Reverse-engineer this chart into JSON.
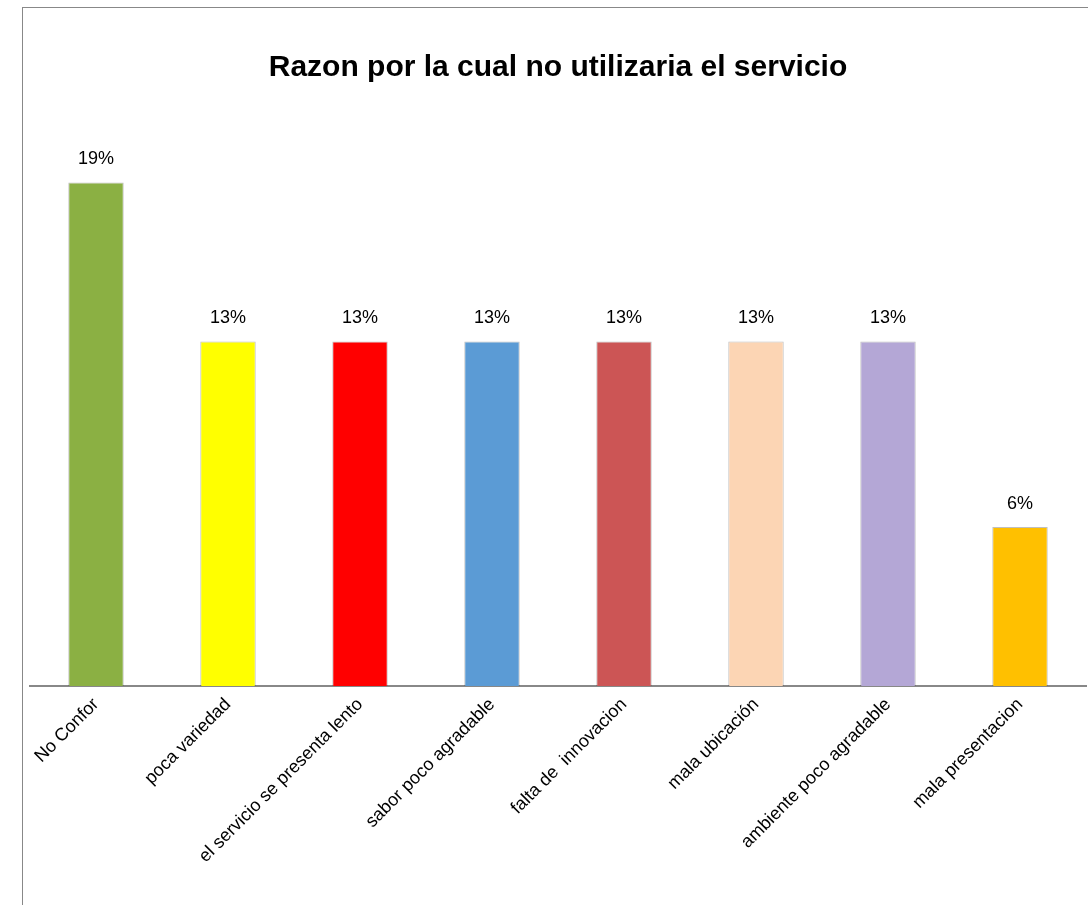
{
  "chart_data": {
    "type": "bar",
    "title": "Razon por la cual no utilizaria el servicio",
    "categories": [
      "No Confor",
      "poca variedad",
      "el servicio se presenta lento",
      "sabor poco agradable",
      "falta de  innovacion",
      "mala ubicación",
      "ambiente poco agradable",
      "mala presentacion"
    ],
    "values": [
      19,
      13,
      13,
      13,
      13,
      13,
      13,
      6
    ],
    "value_labels": [
      "19%",
      "13%",
      "13%",
      "13%",
      "13%",
      "13%",
      "13%",
      "6%"
    ],
    "colors": [
      "#8bb043",
      "#ffff00",
      "#ff0000",
      "#5b9bd5",
      "#cc5555",
      "#fcd5b4",
      "#b4a7d6",
      "#ffc000"
    ],
    "grid": false,
    "legend": false
  }
}
